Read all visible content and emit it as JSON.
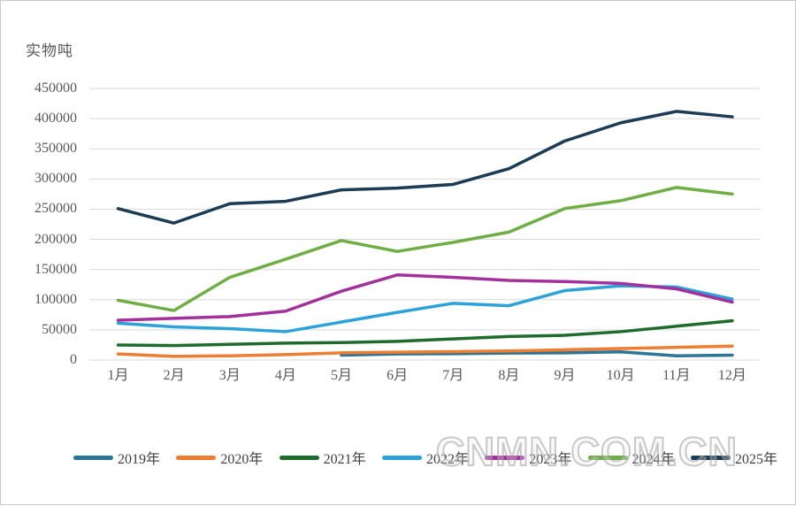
{
  "page": {
    "background": "#ffffff",
    "border_color": "#c9c9c9",
    "gridline_color": "#d9d9d9"
  },
  "watermark": {
    "text": "CNMN.COM.CN"
  },
  "chart_data": {
    "type": "line",
    "title": "实物吨",
    "xlabel": "",
    "ylabel": "实物吨",
    "ylim": [
      0,
      450000
    ],
    "ytick_step": 50000,
    "yticks": [
      0,
      50000,
      100000,
      150000,
      200000,
      250000,
      300000,
      350000,
      400000,
      450000
    ],
    "grid": "horizontal",
    "legend_position": "bottom",
    "categories": [
      "1月",
      "2月",
      "3月",
      "4月",
      "5月",
      "6月",
      "7月",
      "8月",
      "9月",
      "10月",
      "11月",
      "12月"
    ],
    "series": [
      {
        "name": "2019年",
        "color": "#2d7495",
        "values": [
          null,
          null,
          null,
          null,
          8000,
          10000,
          10500,
          11500,
          12000,
          13500,
          7000,
          8000
        ]
      },
      {
        "name": "2020年",
        "color": "#ed7d31",
        "values": [
          10000,
          6000,
          7000,
          9000,
          12000,
          13000,
          14000,
          15000,
          17000,
          19000,
          21000,
          23000
        ]
      },
      {
        "name": "2021年",
        "color": "#1f6b2d",
        "values": [
          25000,
          24000,
          26000,
          28000,
          29000,
          31000,
          35000,
          39000,
          41000,
          47000,
          56000,
          65000
        ]
      },
      {
        "name": "2022年",
        "color": "#2da2d8",
        "values": [
          61000,
          55000,
          52000,
          47000,
          63000,
          79000,
          94000,
          90000,
          115000,
          123000,
          121000,
          101000
        ]
      },
      {
        "name": "2023年",
        "color": "#a3319b",
        "values": [
          66000,
          69000,
          72000,
          81000,
          114000,
          141000,
          137000,
          132000,
          130000,
          127000,
          118000,
          96000
        ]
      },
      {
        "name": "2024年",
        "color": "#6eae44",
        "values": [
          99000,
          82000,
          137000,
          167000,
          198000,
          180000,
          195000,
          212000,
          251000,
          264000,
          286000,
          275000
        ]
      },
      {
        "name": "2025年",
        "color": "#1c3b54",
        "values": [
          251000,
          227000,
          259000,
          263000,
          282000,
          285000,
          291000,
          317000,
          363000,
          393000,
          412000,
          403000
        ]
      }
    ]
  }
}
